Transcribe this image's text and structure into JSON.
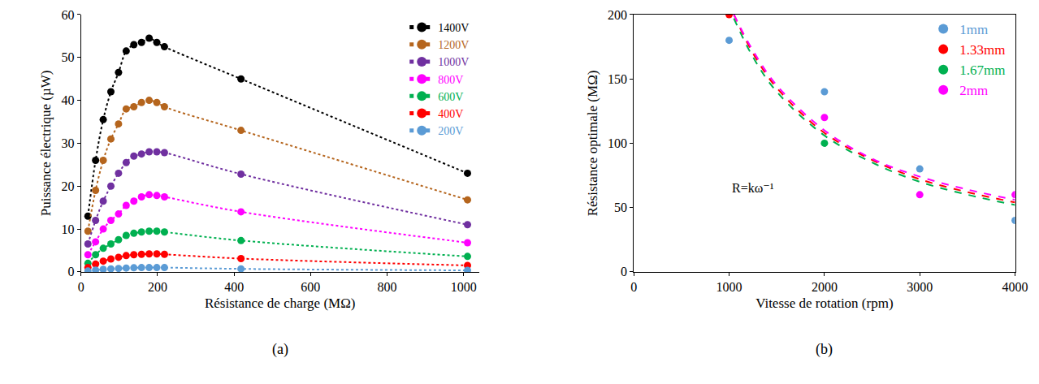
{
  "chart_data": [
    {
      "type": "scatter",
      "marker": "circle",
      "line_style": "dotted",
      "caption": "(a)",
      "x_label": "Résistance de charge (MΩ)",
      "y_label": "Puissance électrique (µW)",
      "x": [
        18,
        38,
        58,
        78,
        98,
        118,
        138,
        158,
        178,
        198,
        218,
        418,
        1010
      ],
      "series": [
        {
          "name": "1400V",
          "color": "#000000",
          "values": [
            13,
            26,
            35.5,
            42,
            46.5,
            51.5,
            53,
            53.5,
            54.5,
            53.5,
            52.5,
            45,
            23
          ]
        },
        {
          "name": "1200V",
          "color": "#b5651d",
          "values": [
            9.5,
            19,
            26,
            31,
            34.5,
            38,
            38.5,
            39.5,
            40,
            39.5,
            38.5,
            33,
            16.8
          ]
        },
        {
          "name": "1000V",
          "color": "#7030a0",
          "values": [
            6.5,
            12,
            16.5,
            20,
            23,
            25.5,
            27,
            27.5,
            28,
            28,
            27.8,
            22.8,
            11
          ]
        },
        {
          "name": "800V",
          "color": "#ff00ff",
          "values": [
            4,
            7,
            10,
            12,
            13.5,
            15.5,
            16.5,
            17.5,
            18,
            17.8,
            17.5,
            14,
            6.8
          ]
        },
        {
          "name": "600V",
          "color": "#00b050",
          "values": [
            2,
            4,
            5.5,
            6.5,
            7.5,
            8.5,
            9,
            9.3,
            9.5,
            9.5,
            9.3,
            7.3,
            3.6
          ]
        },
        {
          "name": "400V",
          "color": "#ff0000",
          "values": [
            1,
            1.8,
            2.5,
            3,
            3.4,
            3.8,
            4,
            4.1,
            4.2,
            4.2,
            4.1,
            3.1,
            1.5
          ]
        },
        {
          "name": "200V",
          "color": "#5b9bd5",
          "values": [
            0.2,
            0.4,
            0.6,
            0.7,
            0.8,
            0.9,
            0.95,
            1,
            1,
            1,
            1,
            0.7,
            0.35
          ]
        }
      ],
      "xlim": [
        0,
        1040
      ],
      "xticks": [
        0,
        200,
        400,
        600,
        800,
        1000
      ],
      "ylim": [
        0,
        60
      ],
      "yticks": [
        0,
        10,
        20,
        30,
        40,
        50,
        60
      ],
      "grid": false,
      "legend": "top right"
    },
    {
      "type": "scatter",
      "marker": "circle",
      "caption": "(b)",
      "x_label": "Vitesse de rotation (rpm)",
      "y_label": "Résistance optimale (MΩ)",
      "x": [
        1000,
        2000,
        3000,
        4000
      ],
      "series": [
        {
          "name": "1mm",
          "color": "#5b9bd5",
          "values": [
            180,
            140,
            80,
            40
          ]
        },
        {
          "name": "1.33mm",
          "color": "#ff0000",
          "values": [
            200,
            null,
            null,
            null
          ]
        },
        {
          "name": "1.67mm",
          "color": "#00b050",
          "values": [
            null,
            100,
            null,
            null
          ]
        },
        {
          "name": "2mm",
          "color": "#ff00ff",
          "values": [
            null,
            120,
            60,
            60
          ]
        }
      ],
      "fits": [
        {
          "color": "#00b050",
          "line_style": "dashed",
          "x": [
            1050,
            1250,
            1500,
            2000,
            2500,
            3000,
            3500,
            4000
          ],
          "values": [
            197,
            167,
            140,
            106,
            85,
            70,
            60,
            52
          ]
        },
        {
          "color": "#ff0000",
          "line_style": "dashed",
          "x": [
            1050,
            1250,
            1500,
            2000,
            2500,
            3000,
            3500,
            4000
          ],
          "values": [
            200,
            170,
            143,
            108,
            87,
            72,
            62,
            54
          ]
        },
        {
          "color": "#ff00ff",
          "line_style": "dashed",
          "x": [
            1050,
            1250,
            1500,
            2000,
            2500,
            3000,
            3500,
            4000
          ],
          "values": [
            200,
            172,
            145,
            110,
            88,
            74,
            64,
            56
          ]
        }
      ],
      "annotations": [
        {
          "text": "R=kω⁻¹",
          "x": 1250,
          "y": 65
        }
      ],
      "xlim": [
        0,
        4000
      ],
      "xticks": [
        0,
        1000,
        2000,
        3000,
        4000
      ],
      "ylim": [
        0,
        200
      ],
      "yticks": [
        0,
        50,
        100,
        150,
        200
      ],
      "grid": false,
      "legend": "top right"
    }
  ]
}
